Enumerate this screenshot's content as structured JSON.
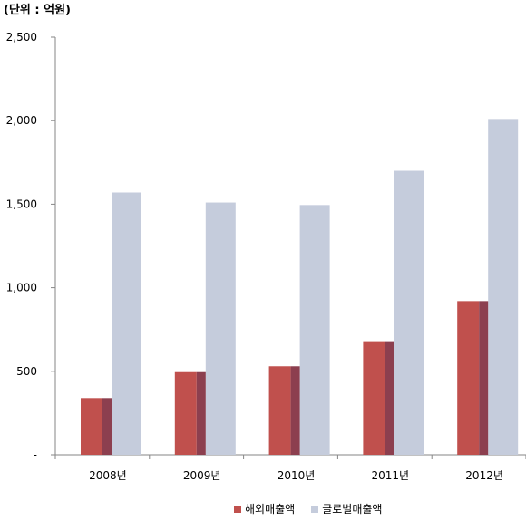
{
  "chart_data": {
    "type": "bar",
    "unit_label": "(단위 : 억원)",
    "categories": [
      "2008년",
      "2009년",
      "2010년",
      "2011년",
      "2012년"
    ],
    "series": [
      {
        "name": "해외매출액",
        "color": "#c0504d",
        "values": [
          340,
          495,
          530,
          680,
          920
        ]
      },
      {
        "name": "글로벌매출액",
        "color": "#c5ccdc",
        "values": [
          1570,
          1510,
          1495,
          1700,
          2010
        ]
      }
    ],
    "ylim": [
      0,
      2500
    ],
    "yticks": [
      0,
      500,
      1000,
      1500,
      2000,
      2500
    ],
    "ytick_labels": [
      "-",
      "500",
      "1,000",
      "1,500",
      "2,000",
      "2,500"
    ],
    "grid": false,
    "legend_position": "bottom"
  }
}
